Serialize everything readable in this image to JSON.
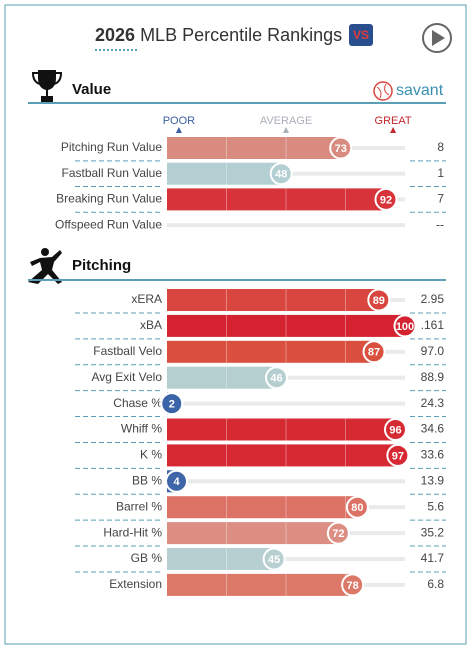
{
  "title_year": "2026",
  "title": "MLB Percentile Rankings",
  "brand": "savant",
  "chart_data": {
    "type": "percentile",
    "xlim": [
      0,
      100
    ],
    "xticks": [
      {
        "value": 5,
        "label": "POOR"
      },
      {
        "value": 50,
        "label": "AVERAGE"
      },
      {
        "value": 95,
        "label": "GREAT"
      }
    ],
    "sections": [
      {
        "title": "Value",
        "rows": [
          {
            "label": "Pitching Run Value",
            "percentile": 73,
            "value": "8",
            "color": "#d98b80"
          },
          {
            "label": "Fastball Run Value",
            "percentile": 48,
            "value": "1",
            "color": "#b3cfd1"
          },
          {
            "label": "Breaking Run Value",
            "percentile": 92,
            "value": "7",
            "color": "#d7333a"
          },
          {
            "label": "Offspeed Run Value",
            "percentile": null,
            "value": "--",
            "color": "#cccccc"
          }
        ]
      },
      {
        "title": "Pitching",
        "rows": [
          {
            "label": "xERA",
            "percentile": 89,
            "value": "2.95",
            "color": "#d9463f"
          },
          {
            "label": "xBA",
            "percentile": 100,
            "value": ".161",
            "color": "#d52230"
          },
          {
            "label": "Fastball Velo",
            "percentile": 87,
            "value": "97.0",
            "color": "#d9503f"
          },
          {
            "label": "Avg Exit Velo",
            "percentile": 46,
            "value": "88.9",
            "color": "#b5ced0"
          },
          {
            "label": "Chase %",
            "percentile": 2,
            "value": "24.3",
            "color": "#3b63a8"
          },
          {
            "label": "Whiff %",
            "percentile": 96,
            "value": "34.6",
            "color": "#d62a33"
          },
          {
            "label": "K %",
            "percentile": 97,
            "value": "33.6",
            "color": "#d62832"
          },
          {
            "label": "BB %",
            "percentile": 4,
            "value": "13.9",
            "color": "#3d65a8"
          },
          {
            "label": "Barrel %",
            "percentile": 80,
            "value": "5.6",
            "color": "#dc7266"
          },
          {
            "label": "Hard-Hit %",
            "percentile": 72,
            "value": "35.2",
            "color": "#dc8e82"
          },
          {
            "label": "GB %",
            "percentile": 45,
            "value": "41.7",
            "color": "#b8cfd1"
          },
          {
            "label": "Extension",
            "percentile": 78,
            "value": "6.8",
            "color": "#dc7868"
          }
        ]
      }
    ]
  }
}
